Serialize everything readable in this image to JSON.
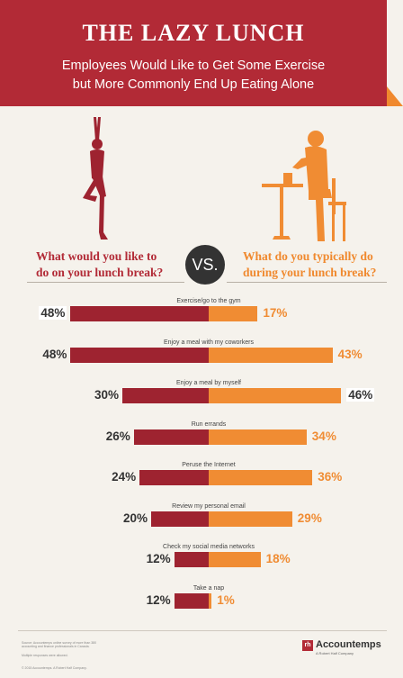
{
  "header": {
    "title": "THE LAZY LUNCH",
    "subtitle_line1": "Employees Would Like to Get Some Exercise",
    "subtitle_line2": "but More Commonly End Up Eating Alone"
  },
  "questions": {
    "left_line1": "What would you like to",
    "left_line2": "do on your lunch break?",
    "vs": "VS.",
    "right_line1": "What do you typically do",
    "right_line2": "during your lunch break?"
  },
  "icons": {
    "left": "yoga-figure-icon",
    "right": "person-eating-at-table-icon"
  },
  "colors": {
    "header": "#b22a36",
    "would_like": "#9e2330",
    "typically_do": "#f08c33",
    "background": "#f5f2ec"
  },
  "chart_data": {
    "type": "bar",
    "title": "THE LAZY LUNCH",
    "subtitle": "Employees Would Like to Get Some Exercise but More Commonly End Up Eating Alone",
    "categories": [
      "Exercise/go to the gym",
      "Enjoy a meal with my coworkers",
      "Enjoy a meal by myself",
      "Run errands",
      "Peruse the Internet",
      "Review my personal email",
      "Check my social media networks",
      "Take a nap"
    ],
    "series": [
      {
        "name": "What would you like to do on your lunch break?",
        "values": [
          48,
          48,
          30,
          26,
          24,
          20,
          12,
          12
        ]
      },
      {
        "name": "What do you typically do during your lunch break?",
        "values": [
          17,
          43,
          46,
          34,
          36,
          29,
          18,
          1
        ]
      }
    ],
    "left_labels": [
      "48%",
      "48%",
      "30%",
      "26%",
      "24%",
      "20%",
      "12%",
      "12%"
    ],
    "right_labels": [
      "17%",
      "43%",
      "46%",
      "34%",
      "36%",
      "29%",
      "18%",
      "1%"
    ],
    "highlighted": [
      "Exercise/go to the gym",
      "Enjoy a meal by myself"
    ],
    "xlim": [
      0,
      50
    ]
  },
  "footer": {
    "source": "Source: Accountemps online survey of more than 380 accounting and finance professionals in Canada.",
    "note": "Multiple responses were allowed.",
    "copyright": "© 2015 Accountemps. A Robert Half Company.",
    "logo_mark": "rh",
    "brand": "Accountemps",
    "brand_sub": "A Robert Half Company"
  }
}
